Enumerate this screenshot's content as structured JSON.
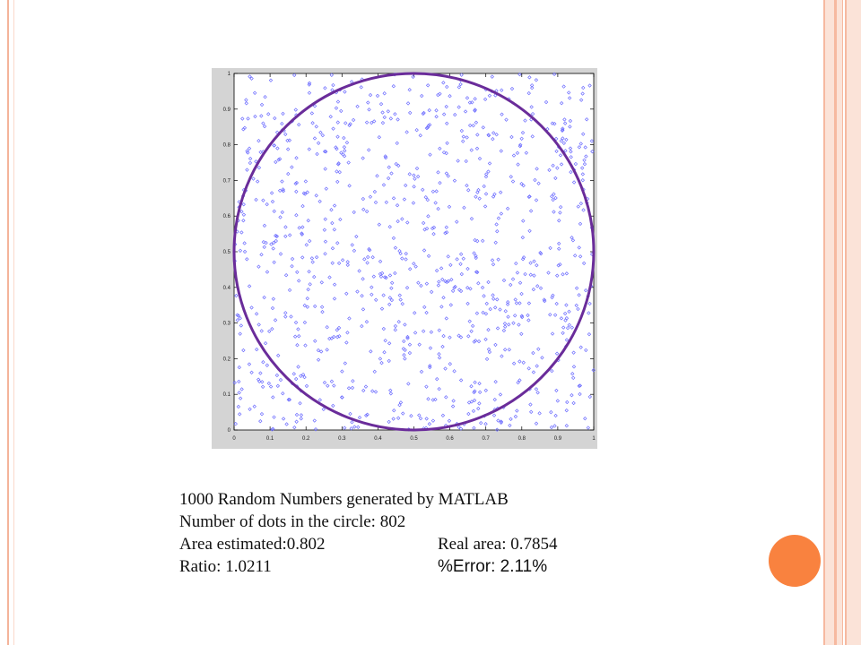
{
  "chart_data": {
    "type": "scatter",
    "title": "",
    "xlabel": "",
    "ylabel": "",
    "xlim": [
      0,
      1
    ],
    "ylim": [
      0,
      1
    ],
    "x_ticks": [
      "0",
      "0.1",
      "0.2",
      "0.3",
      "0.4",
      "0.5",
      "0.6",
      "0.7",
      "0.8",
      "0.9",
      "1"
    ],
    "y_ticks": [
      "0",
      "0.1",
      "0.2",
      "0.3",
      "0.4",
      "0.5",
      "0.6",
      "0.7",
      "0.8",
      "0.9",
      "1"
    ],
    "grid": false,
    "marker_color": "#6b6bff",
    "circle": {
      "center": [
        0.5,
        0.5
      ],
      "radius": 0.5,
      "color": "#6a2c9a"
    },
    "points_note_count": 1000
  },
  "caption": {
    "line1": "1000 Random Numbers generated by MATLAB",
    "line2": "Number of dots in the circle: 802",
    "line3_left": "Area estimated:0.802",
    "line3_right": "Real area: 0.7854",
    "line4_left": "Ratio: 1.0211",
    "line4_right": "%Error: 2.11%"
  },
  "colors": {
    "accent": "#f9823f",
    "border": "#f6b9a0"
  }
}
